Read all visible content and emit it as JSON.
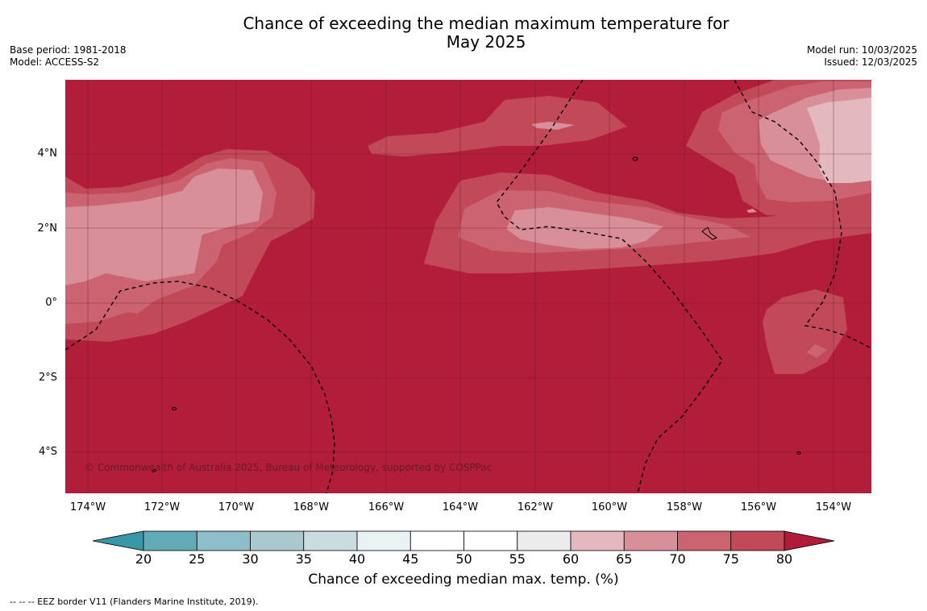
{
  "title": {
    "line1": "Chance of exceeding the median maximum temperature for",
    "line2": "May 2025"
  },
  "meta": {
    "base_period": "Base period: 1981-2018",
    "model": "Model: ACCESS-S2",
    "model_run": "Model run: 10/03/2025",
    "issued": "Issued: 12/03/2025"
  },
  "map": {
    "copyright": "© Commonwealth of Australia 2025, Bureau of Meteorology, supported by COSPPac",
    "lat_labels": [
      "4°N",
      "2°N",
      "0°",
      "2°S",
      "4°S"
    ],
    "lon_labels": [
      "174°W",
      "172°W",
      "170°W",
      "168°W",
      "166°W",
      "164°W",
      "162°W",
      "160°W",
      "158°W",
      "156°W",
      "154°W"
    ]
  },
  "colorbar": {
    "ticks": [
      "20",
      "25",
      "30",
      "35",
      "40",
      "45",
      "50",
      "55",
      "60",
      "65",
      "70",
      "75",
      "80"
    ],
    "colors": [
      "#63aab9",
      "#8dbec9",
      "#aac9ce",
      "#c9dcdf",
      "#eaf3f3",
      "#ffffff",
      "#ffffff",
      "#ececec",
      "#e3b9bf",
      "#d88f99",
      "#cc6370",
      "#c24a58"
    ],
    "low_color": "#3a97a8",
    "high_color": "#b01c38",
    "label": "Chance of exceeding median max. temp. (%)"
  },
  "footnote": "--  --  -- EEZ border V11 (Flanders Marine Institute, 2019).",
  "colors": {
    "c80": "#b21e3a",
    "c75": "#c24a58",
    "c70": "#cc6370",
    "c65": "#d88f99",
    "c60": "#e3b9bf"
  }
}
